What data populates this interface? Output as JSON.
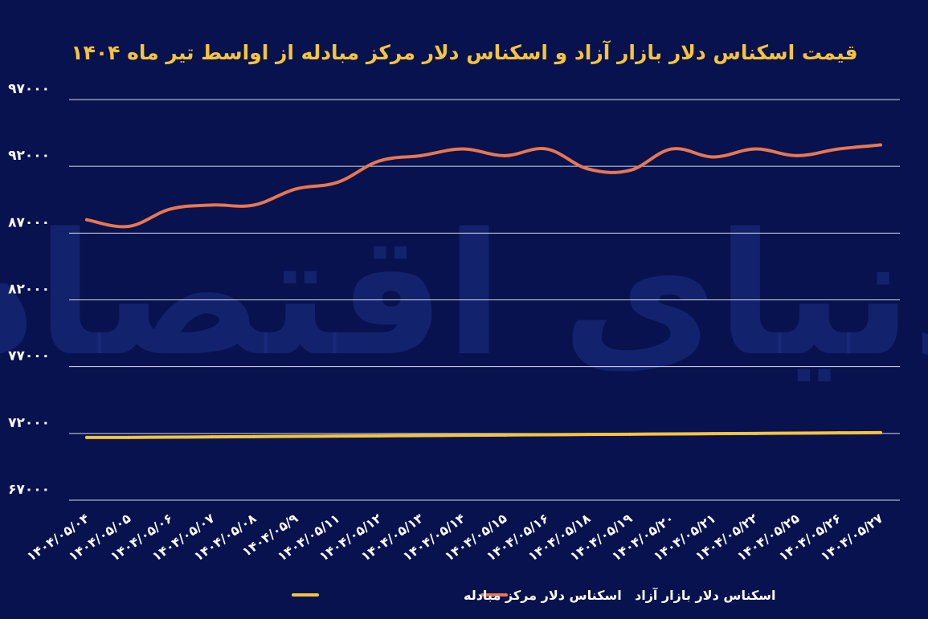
{
  "chart_data": {
    "type": "line",
    "title": "قیمت اسکناس دلار بازار آزاد و اسکناس دلار مرکز مبادله از اواسط تیر ماه ۱۴۰۴",
    "watermark": "دنیای اقتصاد",
    "categories": [
      "۱۴۰۴/۰۵/۰۴",
      "۱۴۰۴/۰۵/۰۵",
      "۱۴۰۴/۰۵/۰۶",
      "۱۴۰۴/۰۵/۰۷",
      "۱۴۰۴/۰۵/۰۸",
      "۱۴۰۴/۰۵/۹",
      "۱۴۰۴/۰۵/۱۱",
      "۱۴۰۴/۰۵/۱۲",
      "۱۴۰۴/۰۵/۱۳",
      "۱۴۰۴/۰۵/۱۴",
      "۱۴۰۴/۰۵/۱۵",
      "۱۴۰۴/۰۵/۱۶",
      "۱۴۰۴/۰۵/۱۸",
      "۱۴۰۴/۰۵/۱۹",
      "۱۴۰۴/۰۵/۲۰",
      "۱۴۰۴/۰۵/۲۱",
      "۱۴۰۴/۰۵/۲۲",
      "۱۴۰۴/۰۵/۲۵",
      "۱۴۰۴/۰۵/۲۶",
      "۱۴۰۴/۰۵/۲۷"
    ],
    "series": [
      {
        "name": "اسکناس دلار بازار آزاد",
        "color": "#e87750",
        "values": [
          88000,
          87500,
          88800,
          89100,
          89100,
          90300,
          90800,
          92400,
          92800,
          93300,
          92800,
          93300,
          91800,
          91700,
          93300,
          92700,
          93300,
          92800,
          93300,
          93600
        ]
      },
      {
        "name": "اسکناس دلار مرکز مبادله",
        "color": "#f5c43c",
        "values": [
          71700,
          71700,
          71720,
          71740,
          71760,
          71780,
          71800,
          71820,
          71840,
          71860,
          71880,
          71900,
          71920,
          71940,
          71960,
          71980,
          72000,
          72020,
          72040,
          72060
        ]
      }
    ],
    "y_ticks": [
      67000,
      72000,
      77000,
      82000,
      87000,
      92000,
      97000
    ],
    "y_tick_labels": [
      "۶۷۰۰۰",
      "۷۲۰۰۰",
      "۷۷۰۰۰",
      "۸۲۰۰۰",
      "۸۷۰۰۰",
      "۹۲۰۰۰",
      "۹۷۰۰۰"
    ],
    "ylim": [
      67000,
      97000
    ],
    "grid": true,
    "legend_position": "bottom",
    "colors": {
      "background": "#07124f",
      "title": "#f5c43c",
      "grid": "#ffffff",
      "text": "#ffffff"
    }
  }
}
